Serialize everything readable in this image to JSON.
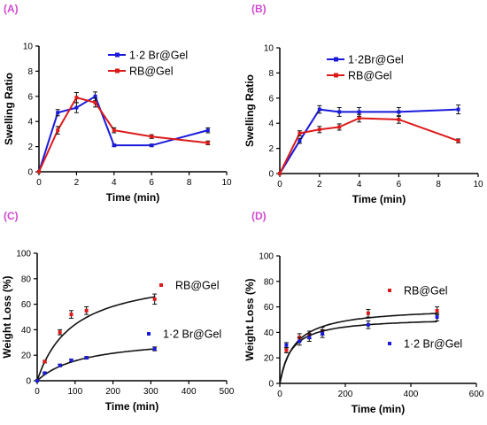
{
  "chart_data": [
    {
      "panel": "(A)",
      "type": "line",
      "xlabel": "Time (min)",
      "ylabel": "Swelling Ratio",
      "xlim": [
        0,
        10
      ],
      "ylim": [
        0,
        10
      ],
      "xticks": [
        0,
        2,
        4,
        6,
        8,
        10
      ],
      "yticks": [
        0,
        2,
        4,
        6,
        8,
        10
      ],
      "legend": "top-right",
      "series": [
        {
          "name": "1·2 Br@Gel",
          "color": "#1a1adc",
          "x": [
            0,
            1,
            2,
            3,
            4,
            6,
            9
          ],
          "y": [
            0,
            4.7,
            5.1,
            6.0,
            2.1,
            2.1,
            3.3
          ],
          "err": [
            0,
            0.25,
            0.4,
            0.35,
            0.1,
            0.1,
            0.2
          ]
        },
        {
          "name": "RB@Gel",
          "color": "#dc1a1a",
          "x": [
            0,
            1,
            2,
            3,
            4,
            6,
            9
          ],
          "y": [
            0,
            3.3,
            5.9,
            5.5,
            3.3,
            2.8,
            2.3
          ],
          "err": [
            0,
            0.3,
            0.4,
            0.35,
            0.2,
            0.15,
            0.15
          ]
        }
      ]
    },
    {
      "panel": "(B)",
      "type": "line",
      "xlabel": "Time (min)",
      "ylabel": "Swelling Ratio",
      "xlim": [
        0,
        10
      ],
      "ylim": [
        0,
        10
      ],
      "xticks": [
        0,
        2,
        4,
        6,
        8,
        10
      ],
      "yticks": [
        0,
        2,
        4,
        6,
        8,
        10
      ],
      "legend": "top-right",
      "series": [
        {
          "name": "1·2Br@Gel",
          "color": "#1a1adc",
          "x": [
            0,
            1,
            2,
            3,
            4,
            6,
            9
          ],
          "y": [
            0,
            2.6,
            5.1,
            4.9,
            4.9,
            4.9,
            5.1
          ],
          "err": [
            0,
            0.2,
            0.3,
            0.35,
            0.35,
            0.35,
            0.35
          ]
        },
        {
          "name": "RB@Gel",
          "color": "#dc1a1a",
          "x": [
            0,
            1,
            2,
            3,
            4,
            6,
            9
          ],
          "y": [
            0,
            3.2,
            3.5,
            3.7,
            4.4,
            4.3,
            2.6
          ],
          "err": [
            0,
            0.2,
            0.25,
            0.25,
            0.3,
            0.3,
            0.15
          ]
        }
      ]
    },
    {
      "panel": "(C)",
      "type": "scatter",
      "xlabel": "Time (min)",
      "ylabel": "Weight Loss (%)",
      "xlim": [
        0,
        500
      ],
      "ylim": [
        0,
        100
      ],
      "xticks": [
        0,
        100,
        200,
        300,
        400,
        500
      ],
      "yticks": [
        0,
        20,
        40,
        60,
        80,
        100
      ],
      "fit": true,
      "series": [
        {
          "name": "RB@Gel",
          "color": "#dc1a1a",
          "x": [
            0,
            20,
            60,
            90,
            130,
            310
          ],
          "y": [
            0,
            15,
            38,
            52,
            55,
            64
          ],
          "err": [
            0,
            1,
            2,
            3,
            3,
            4
          ],
          "fit_a": 86,
          "fit_k": 95
        },
        {
          "name": "1·2 Br@Gel",
          "color": "#1a1adc",
          "x": [
            0,
            20,
            60,
            90,
            130,
            310
          ],
          "y": [
            0,
            6,
            12,
            16,
            18,
            25
          ],
          "err": [
            0,
            0.5,
            1,
            1,
            1,
            1.5
          ],
          "fit_a": 35,
          "fit_k": 125
        }
      ]
    },
    {
      "panel": "(D)",
      "type": "scatter",
      "xlabel": "Time (min)",
      "ylabel": "Weight Loss (%)",
      "xlim": [
        0,
        600
      ],
      "ylim": [
        0,
        100
      ],
      "xticks": [
        0,
        200,
        400,
        600
      ],
      "yticks": [
        0,
        20,
        40,
        60,
        80,
        100
      ],
      "fit": true,
      "series": [
        {
          "name": "RB@Gel",
          "color": "#dc1a1a",
          "x": [
            20,
            60,
            90,
            130,
            270,
            480
          ],
          "y": [
            26,
            36,
            38,
            41,
            55,
            57
          ],
          "err": [
            2,
            3,
            3,
            3,
            3,
            3
          ],
          "fit_a": 60,
          "fit_k": 45
        },
        {
          "name": "1·2 Br@Gel",
          "color": "#1a1adc",
          "x": [
            20,
            60,
            90,
            130,
            270,
            480
          ],
          "y": [
            30,
            33,
            36,
            39,
            46,
            52
          ],
          "err": [
            2,
            3,
            3,
            3,
            3,
            3
          ],
          "fit_a": 52,
          "fit_k": 35
        }
      ]
    }
  ]
}
